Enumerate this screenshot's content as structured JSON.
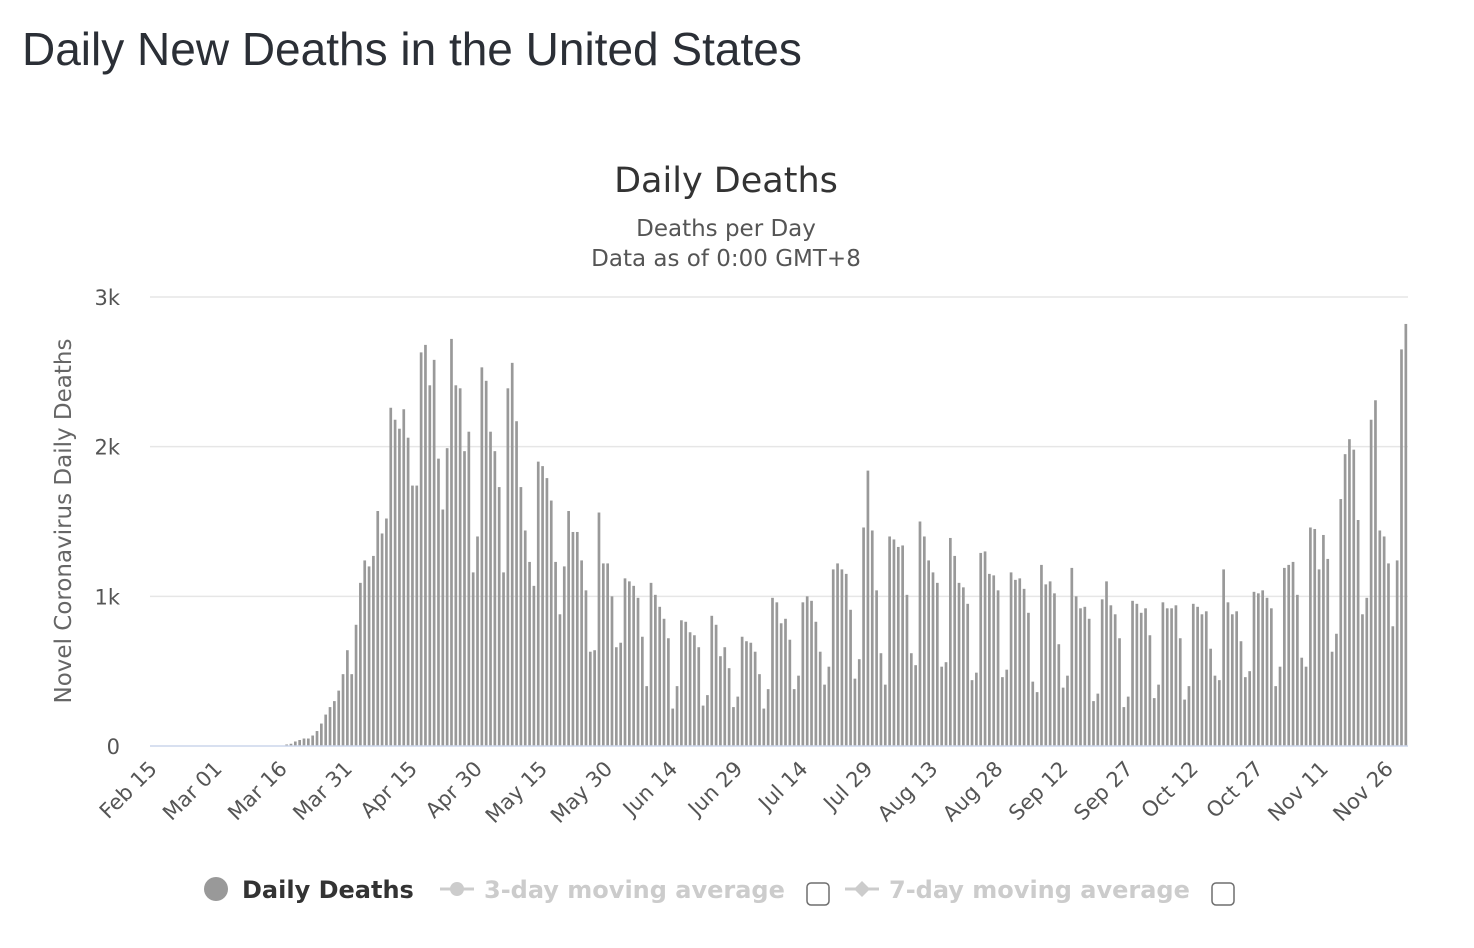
{
  "page": {
    "title": "Daily New Deaths in the United States"
  },
  "chart_data": {
    "type": "bar",
    "title": "Daily Deaths",
    "subtitle_lines": [
      "Deaths per Day",
      "Data as of 0:00 GMT+8"
    ],
    "xlabel": "",
    "ylabel": "Novel Coronavirus Daily Deaths",
    "ylim": [
      0,
      3000
    ],
    "y_ticks": [
      {
        "value": 0,
        "label": "0"
      },
      {
        "value": 1000,
        "label": "1k"
      },
      {
        "value": 2000,
        "label": "2k"
      },
      {
        "value": 3000,
        "label": "3k"
      }
    ],
    "start_date": "2020-02-15",
    "x_ticks": [
      "Feb 15",
      "Mar 01",
      "Mar 16",
      "Mar 31",
      "Apr 15",
      "Apr 30",
      "May 15",
      "May 30",
      "Jun 14",
      "Jun 29",
      "Jul 14",
      "Jul 29",
      "Aug 13",
      "Aug 28",
      "Sep 12",
      "Sep 27",
      "Oct 12",
      "Oct 27",
      "Nov 11",
      "Nov 26"
    ],
    "grid": true,
    "legend_position": "bottom",
    "colors": {
      "bar": "#999999",
      "grid": "#e6e6e6",
      "axis": "#ccd6eb",
      "legend_inactive": "#cccccc"
    },
    "series": [
      {
        "name": "Daily Deaths",
        "values": [
          0,
          0,
          0,
          0,
          0,
          0,
          0,
          0,
          0,
          0,
          0,
          0,
          0,
          0,
          0,
          0,
          0,
          0,
          0,
          0,
          0,
          0,
          0,
          0,
          0,
          0,
          0,
          0,
          0,
          0,
          0,
          10,
          15,
          30,
          40,
          50,
          50,
          70,
          100,
          150,
          210,
          260,
          300,
          370,
          480,
          640,
          480,
          810,
          1090,
          1240,
          1200,
          1270,
          1570,
          1420,
          1520,
          2260,
          2180,
          2120,
          2250,
          2060,
          1740,
          1740,
          2630,
          2680,
          2410,
          2580,
          1920,
          1580,
          1990,
          2720,
          2410,
          2390,
          1970,
          2100,
          1160,
          1400,
          2530,
          2440,
          2100,
          1970,
          1730,
          1160,
          2390,
          2560,
          2170,
          1730,
          1440,
          1230,
          1070,
          1900,
          1870,
          1790,
          1640,
          1230,
          880,
          1200,
          1570,
          1430,
          1430,
          1240,
          1040,
          630,
          640,
          1560,
          1220,
          1220,
          1000,
          660,
          690,
          1120,
          1100,
          1070,
          990,
          730,
          400,
          1090,
          1010,
          930,
          850,
          720,
          250,
          400,
          840,
          830,
          760,
          740,
          660,
          270,
          340,
          870,
          810,
          600,
          660,
          520,
          260,
          330,
          730,
          700,
          690,
          630,
          480,
          250,
          380,
          990,
          960,
          820,
          850,
          710,
          380,
          470,
          960,
          1000,
          970,
          830,
          630,
          410,
          530,
          1180,
          1220,
          1180,
          1150,
          910,
          450,
          580,
          1460,
          1840,
          1440,
          1040,
          620,
          410,
          1400,
          1380,
          1330,
          1340,
          1010,
          620,
          540,
          1500,
          1400,
          1240,
          1160,
          1090,
          530,
          560,
          1390,
          1270,
          1090,
          1060,
          950,
          440,
          490,
          1290,
          1300,
          1150,
          1140,
          1040,
          460,
          510,
          1160,
          1110,
          1120,
          1050,
          890,
          430,
          360,
          1210,
          1080,
          1100,
          1020,
          680,
          390,
          470,
          1190,
          1000,
          920,
          930,
          850,
          300,
          350,
          980,
          1100,
          940,
          880,
          720,
          260,
          330,
          970,
          950,
          890,
          920,
          740,
          320,
          410,
          960,
          920,
          920,
          940,
          720,
          310,
          400,
          950,
          930,
          880,
          900,
          650,
          470,
          440,
          1180,
          960,
          880,
          900,
          700,
          460,
          500,
          1030,
          1020,
          1040,
          990,
          920,
          400,
          530,
          1190,
          1210,
          1230,
          1010,
          590,
          530,
          1460,
          1450,
          1180,
          1410,
          1250,
          630,
          750,
          1650,
          1950,
          2050,
          1980,
          1510,
          880,
          990,
          2180,
          2310,
          1440,
          1400,
          1220,
          800,
          1240,
          2650,
          2820
        ]
      },
      {
        "name": "3-day moving average"
      },
      {
        "name": "7-day moving average"
      }
    ]
  }
}
